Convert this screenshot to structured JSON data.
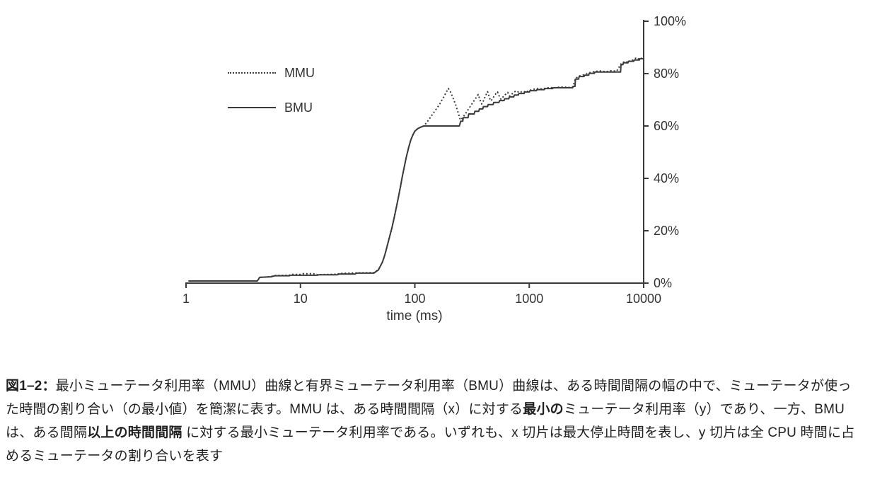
{
  "chart_data": {
    "type": "line",
    "title": "",
    "xlabel": "time (ms)",
    "ylabel": "",
    "x_scale": "log",
    "xlim": [
      1,
      10000
    ],
    "ylim": [
      0,
      100
    ],
    "grid": false,
    "legend_position": "inside-top-left",
    "axis_color": "#3a3a3a",
    "line_color": "#3a3a3a",
    "x_ticks": [
      {
        "value": 1,
        "label": "1"
      },
      {
        "value": 10,
        "label": "10"
      },
      {
        "value": 100,
        "label": "100"
      },
      {
        "value": 1000,
        "label": "1000"
      },
      {
        "value": 10000,
        "label": "10000"
      }
    ],
    "y_ticks": [
      {
        "value": 0,
        "label": "0%"
      },
      {
        "value": 20,
        "label": "20%"
      },
      {
        "value": 40,
        "label": "40%"
      },
      {
        "value": 60,
        "label": "60%"
      },
      {
        "value": 80,
        "label": "80%"
      },
      {
        "value": 100,
        "label": "100%"
      }
    ],
    "legend": [
      {
        "name": "MMU",
        "style": "dotted"
      },
      {
        "name": "BMU",
        "style": "solid"
      }
    ],
    "series": [
      {
        "name": "MMU",
        "dash": "2 3",
        "points": [
          [
            1.05,
            0.8
          ],
          [
            4.2,
            0.8
          ],
          [
            4.4,
            2.2
          ],
          [
            5.5,
            2.5
          ],
          [
            6,
            2.9
          ],
          [
            8,
            3.0
          ],
          [
            8.2,
            3.3
          ],
          [
            10,
            3.3
          ],
          [
            10.5,
            3.6
          ],
          [
            13,
            3.6
          ],
          [
            13.5,
            3.2
          ],
          [
            21,
            3.4
          ],
          [
            22,
            3.7
          ],
          [
            29,
            3.9
          ],
          [
            31,
            3.9
          ],
          [
            44,
            4.0
          ],
          [
            45,
            4.3
          ],
          [
            48,
            5.2
          ],
          [
            50,
            6.5
          ],
          [
            52,
            8
          ],
          [
            54,
            10
          ],
          [
            56,
            12.5
          ],
          [
            58,
            15
          ],
          [
            60,
            17.5
          ],
          [
            63,
            21
          ],
          [
            66,
            25
          ],
          [
            69,
            29
          ],
          [
            72,
            33
          ],
          [
            75,
            37
          ],
          [
            78,
            41
          ],
          [
            81,
            44.5
          ],
          [
            84,
            48
          ],
          [
            88,
            51.5
          ],
          [
            92,
            54.5
          ],
          [
            96,
            56.5
          ],
          [
            100,
            58
          ],
          [
            106,
            59
          ],
          [
            113,
            59.6
          ],
          [
            120,
            60
          ],
          [
            128,
            61.5
          ],
          [
            138,
            63.5
          ],
          [
            150,
            65.8
          ],
          [
            163,
            68
          ],
          [
            176,
            70.5
          ],
          [
            188,
            72.8
          ],
          [
            196,
            74.3
          ],
          [
            204,
            73.2
          ],
          [
            215,
            70.8
          ],
          [
            228,
            68
          ],
          [
            240,
            64.8
          ],
          [
            250,
            62.3
          ],
          [
            258,
            62.8
          ],
          [
            268,
            63.8
          ],
          [
            282,
            65.2
          ],
          [
            298,
            66.8
          ],
          [
            315,
            68.4
          ],
          [
            332,
            69.9
          ],
          [
            348,
            71.2
          ],
          [
            358,
            72
          ],
          [
            366,
            70.8
          ],
          [
            376,
            69.3
          ],
          [
            384,
            68.4
          ],
          [
            394,
            69.2
          ],
          [
            408,
            70.8
          ],
          [
            422,
            72.2
          ],
          [
            432,
            73.1
          ],
          [
            442,
            71.8
          ],
          [
            452,
            70.4
          ],
          [
            462,
            69.6
          ],
          [
            474,
            70.2
          ],
          [
            492,
            71.3
          ],
          [
            512,
            72.4
          ],
          [
            528,
            73
          ],
          [
            540,
            71.9
          ],
          [
            554,
            70.8
          ],
          [
            566,
            70.2
          ],
          [
            582,
            70.8
          ],
          [
            602,
            71.5
          ],
          [
            626,
            72.2
          ],
          [
            648,
            72.8
          ],
          [
            662,
            72
          ],
          [
            676,
            71.4
          ],
          [
            694,
            71.9
          ],
          [
            716,
            72.5
          ],
          [
            740,
            73
          ],
          [
            762,
            73.3
          ],
          [
            788,
            72.9
          ],
          [
            812,
            73.2
          ],
          [
            842,
            72.9
          ],
          [
            872,
            73.3
          ],
          [
            902,
            73
          ],
          [
            932,
            73.4
          ],
          [
            972,
            73.2
          ],
          [
            1005,
            73.6
          ],
          [
            1060,
            73.9
          ],
          [
            1120,
            74.1
          ],
          [
            1200,
            74.3
          ],
          [
            1300,
            74.1
          ],
          [
            1400,
            74.5
          ],
          [
            1520,
            74.7
          ],
          [
            1650,
            74.5
          ],
          [
            1800,
            74.8
          ],
          [
            2000,
            74.9
          ],
          [
            2200,
            74.7
          ],
          [
            2395,
            74.9
          ],
          [
            2420,
            75.3
          ],
          [
            2535,
            78.1
          ],
          [
            2730,
            79.1
          ],
          [
            3040,
            79.6
          ],
          [
            3340,
            80.3
          ],
          [
            3750,
            80.8
          ],
          [
            4200,
            81
          ],
          [
            4700,
            80.7
          ],
          [
            5200,
            81.1
          ],
          [
            5800,
            80.9
          ],
          [
            6340,
            83.7
          ],
          [
            6650,
            84.4
          ],
          [
            7000,
            84.1
          ],
          [
            7360,
            85
          ],
          [
            7700,
            84.6
          ],
          [
            8100,
            85.3
          ],
          [
            8500,
            85.9
          ],
          [
            8900,
            85.4
          ],
          [
            9300,
            86.1
          ],
          [
            9650,
            85.7
          ],
          [
            10000,
            86.1
          ]
        ]
      },
      {
        "name": "BMU",
        "dash": null,
        "points": [
          [
            1.05,
            0.8
          ],
          [
            4.2,
            0.8
          ],
          [
            4.4,
            2.2
          ],
          [
            5.5,
            2.4
          ],
          [
            6,
            2.8
          ],
          [
            8,
            2.8
          ],
          [
            8.2,
            3.0
          ],
          [
            14,
            3.0
          ],
          [
            14.5,
            3.2
          ],
          [
            21,
            3.2
          ],
          [
            22,
            3.5
          ],
          [
            30,
            3.5
          ],
          [
            31,
            3.8
          ],
          [
            44,
            3.8
          ],
          [
            45,
            4.2
          ],
          [
            48,
            5
          ],
          [
            50,
            6.5
          ],
          [
            52,
            8
          ],
          [
            54,
            10
          ],
          [
            56,
            12.5
          ],
          [
            58,
            15
          ],
          [
            60,
            17.5
          ],
          [
            63,
            21
          ],
          [
            66,
            25
          ],
          [
            69,
            29
          ],
          [
            72,
            33
          ],
          [
            75,
            37
          ],
          [
            78,
            41
          ],
          [
            81,
            44.5
          ],
          [
            84,
            48
          ],
          [
            88,
            51.5
          ],
          [
            92,
            54.5
          ],
          [
            96,
            56.5
          ],
          [
            100,
            58
          ],
          [
            106,
            59
          ],
          [
            113,
            59.6
          ],
          [
            120,
            60
          ],
          [
            245,
            60
          ],
          [
            252,
            61.8
          ],
          [
            262,
            61.8
          ],
          [
            265,
            63.2
          ],
          [
            292,
            63.2
          ],
          [
            296,
            64.6
          ],
          [
            330,
            64.6
          ],
          [
            335,
            65.6
          ],
          [
            362,
            65.6
          ],
          [
            367,
            66.5
          ],
          [
            392,
            66.5
          ],
          [
            397,
            67.4
          ],
          [
            432,
            67.4
          ],
          [
            437,
            68.2
          ],
          [
            483,
            68.2
          ],
          [
            490,
            69
          ],
          [
            543,
            69
          ],
          [
            551,
            69.7
          ],
          [
            602,
            69.7
          ],
          [
            611,
            70.4
          ],
          [
            662,
            70.4
          ],
          [
            671,
            71.1
          ],
          [
            732,
            71.1
          ],
          [
            741,
            71.8
          ],
          [
            802,
            71.8
          ],
          [
            812,
            72.4
          ],
          [
            902,
            72.4
          ],
          [
            912,
            73
          ],
          [
            1005,
            73
          ],
          [
            1015,
            73.5
          ],
          [
            1155,
            73.5
          ],
          [
            1165,
            73.9
          ],
          [
            1355,
            73.9
          ],
          [
            1366,
            74.3
          ],
          [
            1605,
            74.3
          ],
          [
            1616,
            74.6
          ],
          [
            2395,
            74.6
          ],
          [
            2420,
            75.1
          ],
          [
            2510,
            75.1
          ],
          [
            2535,
            77.9
          ],
          [
            2700,
            77.9
          ],
          [
            2730,
            78.9
          ],
          [
            3010,
            78.9
          ],
          [
            3040,
            79.4
          ],
          [
            3310,
            79.4
          ],
          [
            3340,
            80.1
          ],
          [
            3710,
            80.1
          ],
          [
            3750,
            80.6
          ],
          [
            6280,
            80.6
          ],
          [
            6340,
            83.4
          ],
          [
            6590,
            83.4
          ],
          [
            6650,
            84.1
          ],
          [
            7290,
            84.1
          ],
          [
            7360,
            84.7
          ],
          [
            8190,
            84.7
          ],
          [
            8270,
            85.2
          ],
          [
            9180,
            85.2
          ],
          [
            9270,
            85.7
          ],
          [
            10000,
            85.7
          ]
        ]
      }
    ]
  },
  "caption": {
    "segments": [
      {
        "text": "図1–2：",
        "bold": true
      },
      {
        "text": "最小ミューテータ利用率（MMU）曲線と有界ミューテータ利用率（BMU）曲線は、ある時間間隔の幅の中で、ミューテータが使った時間の割り合い（の最小値）を簡潔に表す。MMU は、ある時間間隔（x）に対する",
        "bold": false
      },
      {
        "text": "最小の",
        "bold": true
      },
      {
        "text": "ミューテータ利用率（y）であり、一方、BMU は、ある間隔",
        "bold": false
      },
      {
        "text": "以上の時間間隔",
        "bold": true
      },
      {
        "text": " に対する最小ミューテータ利用率である。いずれも、x 切片は最大停止時間を表し、y 切片は全 CPU 時間に占めるミューテータの割り合いを表す",
        "bold": false
      }
    ]
  }
}
